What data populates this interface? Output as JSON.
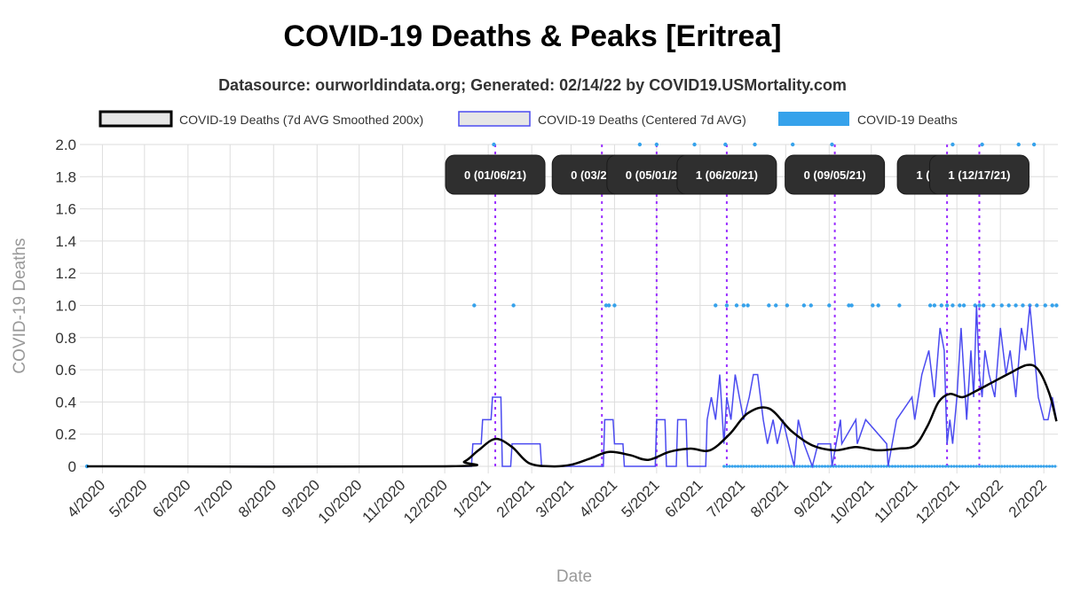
{
  "chart_data": {
    "type": "line",
    "title": "COVID-19 Deaths & Peaks [Eritrea]",
    "subtitle": "Datasource: ourworldindata.org; Generated: 02/14/22 by COVID19.USMortality.com",
    "xlabel": "Date",
    "ylabel": "COVID-19 Deaths",
    "ylim": [
      0,
      2.0
    ],
    "yticks": [
      "0",
      "0.2",
      "0.4",
      "0.6",
      "0.8",
      "1.0",
      "1.2",
      "1.4",
      "1.6",
      "1.8",
      "2.0"
    ],
    "xticks": [
      "4/2020",
      "5/2020",
      "6/2020",
      "7/2020",
      "8/2020",
      "9/2020",
      "10/2020",
      "11/2020",
      "12/2020",
      "1/2021",
      "2/2021",
      "3/2021",
      "4/2021",
      "5/2021",
      "6/2021",
      "7/2021",
      "8/2021",
      "9/2021",
      "10/2021",
      "11/2021",
      "12/2021",
      "1/2022",
      "2/2022"
    ],
    "grid": true,
    "legend_position": "top",
    "legend": [
      {
        "label": "COVID-19 Deaths (7d AVG Smoothed 200x)",
        "color": "#000000"
      },
      {
        "label": "COVID-19 Deaths (Centered 7d AVG)",
        "color": "#4b4bf0"
      },
      {
        "label": "COVID-19 Deaths",
        "color": "#36a2eb"
      }
    ],
    "series": [
      {
        "name": "COVID-19 Deaths (7d AVG Smoothed 200x)",
        "color": "#000000",
        "x": [
          "2020-03-21",
          "2020-12-01",
          "2020-12-15",
          "2020-12-25",
          "2021-01-06",
          "2021-01-18",
          "2021-01-30",
          "2021-02-15",
          "2021-03-01",
          "2021-03-15",
          "2021-03-28",
          "2021-04-12",
          "2021-04-25",
          "2021-05-10",
          "2021-05-25",
          "2021-06-08",
          "2021-06-22",
          "2021-07-05",
          "2021-07-20",
          "2021-08-05",
          "2021-08-20",
          "2021-09-05",
          "2021-09-20",
          "2021-10-05",
          "2021-10-20",
          "2021-11-01",
          "2021-11-10",
          "2021-11-18",
          "2021-11-26",
          "2021-12-05",
          "2021-12-15",
          "2021-12-28",
          "2022-01-08",
          "2022-01-20",
          "2022-01-28",
          "2022-02-05",
          "2022-02-10"
        ],
        "y": [
          0,
          0,
          0.03,
          0.1,
          0.17,
          0.12,
          0.02,
          0.0,
          0.01,
          0.05,
          0.09,
          0.07,
          0.04,
          0.09,
          0.11,
          0.1,
          0.2,
          0.33,
          0.36,
          0.22,
          0.13,
          0.1,
          0.12,
          0.1,
          0.11,
          0.13,
          0.25,
          0.4,
          0.45,
          0.43,
          0.47,
          0.53,
          0.58,
          0.63,
          0.6,
          0.45,
          0.28
        ]
      },
      {
        "name": "COVID-19 Deaths (Centered 7d AVG)",
        "color": "#4b4bf0",
        "x": [
          "2020-03-21",
          "2020-12-20",
          "2020-12-21",
          "2020-12-27",
          "2020-12-28",
          "2021-01-03",
          "2021-01-04",
          "2021-01-10",
          "2021-01-11",
          "2021-01-17",
          "2021-01-18",
          "2021-02-07",
          "2021-02-08",
          "2021-02-14",
          "2021-02-15",
          "2021-03-24",
          "2021-03-25",
          "2021-03-31",
          "2021-04-01",
          "2021-04-07",
          "2021-04-08",
          "2021-04-30",
          "2021-05-01",
          "2021-05-07",
          "2021-05-08",
          "2021-05-15",
          "2021-05-16",
          "2021-05-22",
          "2021-05-23",
          "2021-06-05",
          "2021-06-06",
          "2021-06-09",
          "2021-06-12",
          "2021-06-15",
          "2021-06-18",
          "2021-06-20",
          "2021-06-23",
          "2021-06-26",
          "2021-06-29",
          "2021-07-02",
          "2021-07-06",
          "2021-07-09",
          "2021-07-12",
          "2021-07-16",
          "2021-07-19",
          "2021-07-23",
          "2021-07-26",
          "2021-07-30",
          "2021-08-03",
          "2021-08-07",
          "2021-08-10",
          "2021-08-14",
          "2021-08-20",
          "2021-08-24",
          "2021-09-02",
          "2021-09-03",
          "2021-09-09",
          "2021-09-10",
          "2021-09-20",
          "2021-09-21",
          "2021-09-27",
          "2021-10-12",
          "2021-10-13",
          "2021-10-19",
          "2021-10-30",
          "2021-11-01",
          "2021-11-06",
          "2021-11-11",
          "2021-11-15",
          "2021-11-19",
          "2021-11-22",
          "2021-11-24",
          "2021-11-26",
          "2021-11-28",
          "2021-12-01",
          "2021-12-04",
          "2021-12-08",
          "2021-12-11",
          "2021-12-13",
          "2021-12-15",
          "2021-12-17",
          "2021-12-19",
          "2021-12-21",
          "2021-12-24",
          "2021-12-28",
          "2022-01-01",
          "2022-01-05",
          "2022-01-08",
          "2022-01-12",
          "2022-01-16",
          "2022-01-19",
          "2022-01-22",
          "2022-01-25",
          "2022-01-28",
          "2022-02-01",
          "2022-02-04",
          "2022-02-07",
          "2022-02-10"
        ],
        "y": [
          0,
          0,
          0.14,
          0.14,
          0.29,
          0.29,
          0.43,
          0.43,
          0,
          0,
          0.14,
          0.14,
          0,
          0,
          0,
          0,
          0.29,
          0.29,
          0.14,
          0.14,
          0,
          0,
          0.29,
          0.29,
          0,
          0,
          0.29,
          0.29,
          0,
          0,
          0.29,
          0.43,
          0.29,
          0.57,
          0.14,
          0.43,
          0.29,
          0.57,
          0.43,
          0.29,
          0.43,
          0.57,
          0.57,
          0.29,
          0.14,
          0.29,
          0.14,
          0.29,
          0.14,
          0,
          0.29,
          0.14,
          0,
          0.14,
          0.14,
          0,
          0.29,
          0.14,
          0.29,
          0.14,
          0.29,
          0.14,
          0,
          0.29,
          0.43,
          0.29,
          0.57,
          0.72,
          0.43,
          0.86,
          0.72,
          0.14,
          0.29,
          0.14,
          0.43,
          0.86,
          0.29,
          0.72,
          0.43,
          1.0,
          0.57,
          0.43,
          0.72,
          0.57,
          0.43,
          0.86,
          0.57,
          0.72,
          0.43,
          0.86,
          0.72,
          1.0,
          0.72,
          0.43,
          0.29,
          0.29,
          0.43,
          0.29
        ]
      },
      {
        "name": "COVID-19 Deaths",
        "color": "#36a2eb",
        "points": [
          {
            "x": "2020-12-22",
            "y": 1
          },
          {
            "x": "2021-01-19",
            "y": 1
          },
          {
            "x": "2021-03-26",
            "y": 1
          },
          {
            "x": "2021-03-28",
            "y": 1
          },
          {
            "x": "2021-04-01",
            "y": 1
          },
          {
            "x": "2021-06-12",
            "y": 1
          },
          {
            "x": "2021-06-20",
            "y": 1
          },
          {
            "x": "2021-06-27",
            "y": 1
          },
          {
            "x": "2021-07-02",
            "y": 1
          },
          {
            "x": "2021-07-05",
            "y": 1
          },
          {
            "x": "2021-07-20",
            "y": 1
          },
          {
            "x": "2021-07-25",
            "y": 1
          },
          {
            "x": "2021-08-02",
            "y": 1
          },
          {
            "x": "2021-08-14",
            "y": 1
          },
          {
            "x": "2021-08-19",
            "y": 1
          },
          {
            "x": "2021-09-01",
            "y": 1
          },
          {
            "x": "2021-09-15",
            "y": 1
          },
          {
            "x": "2021-09-17",
            "y": 1
          },
          {
            "x": "2021-10-02",
            "y": 1
          },
          {
            "x": "2021-10-06",
            "y": 1
          },
          {
            "x": "2021-10-21",
            "y": 1
          },
          {
            "x": "2021-11-12",
            "y": 1
          },
          {
            "x": "2021-11-15",
            "y": 1
          },
          {
            "x": "2021-11-20",
            "y": 1
          },
          {
            "x": "2021-11-24",
            "y": 1
          },
          {
            "x": "2021-11-28",
            "y": 1
          },
          {
            "x": "2021-12-03",
            "y": 1
          },
          {
            "x": "2021-12-06",
            "y": 1
          },
          {
            "x": "2021-12-14",
            "y": 1
          },
          {
            "x": "2021-12-17",
            "y": 1
          },
          {
            "x": "2021-12-20",
            "y": 1
          },
          {
            "x": "2021-12-27",
            "y": 1
          },
          {
            "x": "2022-01-02",
            "y": 1
          },
          {
            "x": "2022-01-07",
            "y": 1
          },
          {
            "x": "2022-01-12",
            "y": 1
          },
          {
            "x": "2022-01-17",
            "y": 1
          },
          {
            "x": "2022-01-22",
            "y": 1
          },
          {
            "x": "2022-01-27",
            "y": 1
          },
          {
            "x": "2022-02-02",
            "y": 1
          },
          {
            "x": "2022-02-07",
            "y": 1
          },
          {
            "x": "2022-02-10",
            "y": 1
          },
          {
            "x": "2021-01-05",
            "y": 2
          },
          {
            "x": "2021-04-19",
            "y": 2
          },
          {
            "x": "2021-05-01",
            "y": 2
          },
          {
            "x": "2021-05-28",
            "y": 2
          },
          {
            "x": "2021-06-19",
            "y": 2
          },
          {
            "x": "2021-07-10",
            "y": 2
          },
          {
            "x": "2021-08-06",
            "y": 2
          },
          {
            "x": "2021-09-03",
            "y": 2
          },
          {
            "x": "2021-11-28",
            "y": 2
          },
          {
            "x": "2021-12-19",
            "y": 2
          },
          {
            "x": "2022-01-14",
            "y": 2
          },
          {
            "x": "2022-01-25",
            "y": 2
          }
        ]
      }
    ],
    "peaks": [
      {
        "date": "2021-01-06",
        "label": "0 (01/06/21)"
      },
      {
        "date": "2021-03-23",
        "label": "0 (03/23/21)"
      },
      {
        "date": "2021-05-01",
        "label": "0 (05/01/21)"
      },
      {
        "date": "2021-06-20",
        "label": "1 (06/20/21)"
      },
      {
        "date": "2021-09-05",
        "label": "0 (09/05/21)"
      },
      {
        "date": "2021-11-24",
        "label": "1 (11/24/21)"
      },
      {
        "date": "2021-12-17",
        "label": "1 (12/17/21)"
      }
    ]
  }
}
